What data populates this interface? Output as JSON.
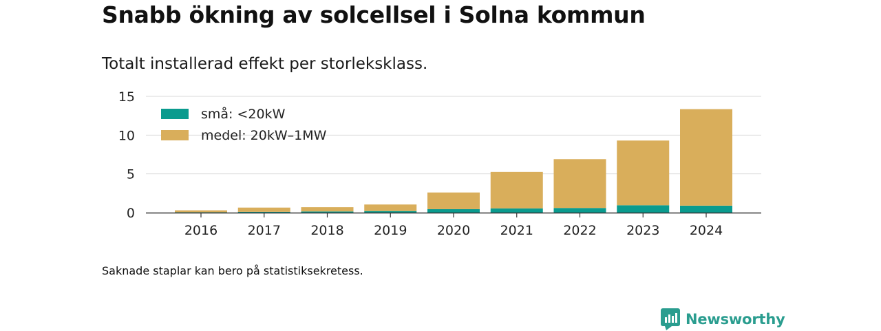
{
  "title": "Snabb ökning av solcellsel i Solna kommun",
  "subtitle": "Totalt installerad effekt per storleksklass.",
  "footnote": "Saknade staplar kan bero på statistiksekretess.",
  "brand": {
    "name": "Newsworthy",
    "icon": "newsworthy-logo-icon",
    "color": "#2a9d8f"
  },
  "chart_data": {
    "type": "bar",
    "stacked": true,
    "categories": [
      "2016",
      "2017",
      "2018",
      "2019",
      "2020",
      "2021",
      "2022",
      "2023",
      "2024"
    ],
    "series": [
      {
        "name": "små: <20kW",
        "color": "#0a9b8e",
        "values": [
          0.05,
          0.1,
          0.15,
          0.2,
          0.45,
          0.55,
          0.6,
          0.95,
          0.9
        ]
      },
      {
        "name": "medel: 20kW–1MW",
        "color": "#d9ae5b",
        "values": [
          0.25,
          0.55,
          0.55,
          0.85,
          2.15,
          4.7,
          6.3,
          8.35,
          12.45
        ]
      }
    ],
    "ylim": [
      0,
      15
    ],
    "yticks": [
      0,
      5,
      10,
      15
    ],
    "grid": true,
    "legend": "top-left"
  }
}
